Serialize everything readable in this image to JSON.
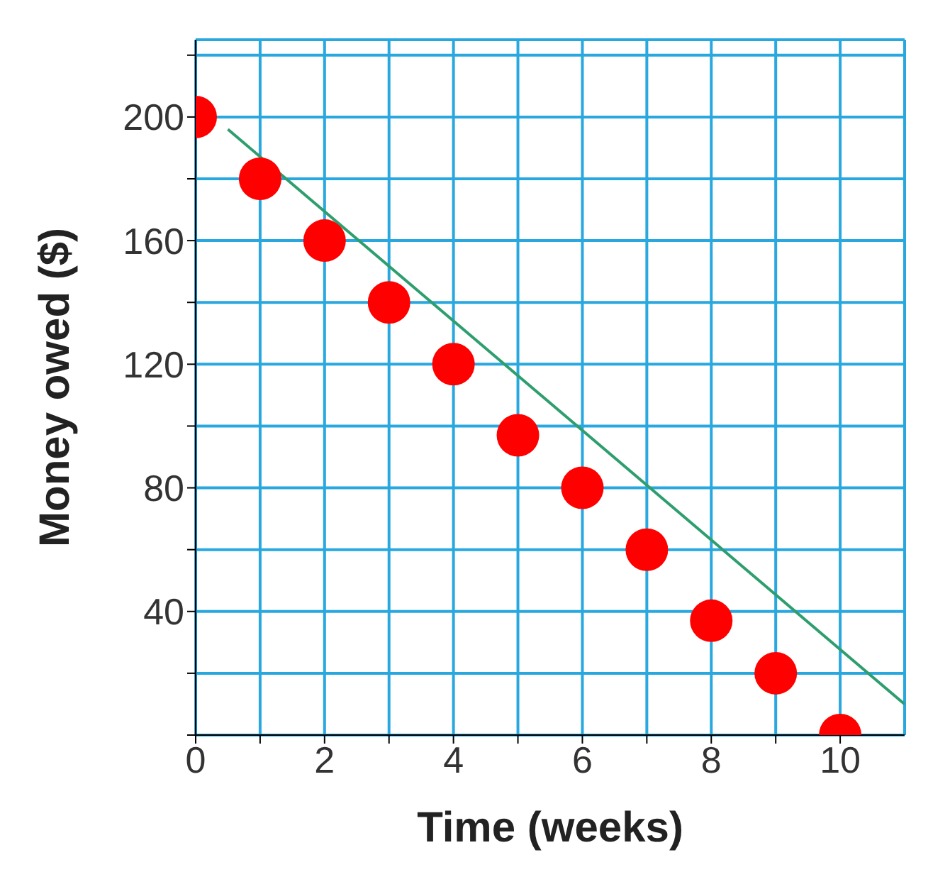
{
  "chart_data": {
    "type": "scatter",
    "xlabel": "Time (weeks)",
    "ylabel": "Money owed ($)",
    "x": [
      0,
      1,
      2,
      3,
      4,
      5,
      6,
      7,
      8,
      9,
      10
    ],
    "series": [
      {
        "color": "#ff0000",
        "values": [
          200,
          180,
          160,
          140,
          120,
          97,
          80,
          60,
          37,
          20,
          0
        ],
        "marker": "circle"
      },
      {
        "type": "line",
        "color": "#2e9e6e",
        "x": [
          0.5,
          11
        ],
        "values": [
          196,
          10
        ],
        "marker": "none"
      }
    ],
    "xlim": [
      0,
      11
    ],
    "xticks": [
      0,
      {
        "value": 1,
        "label": null
      },
      2,
      {
        "value": 3,
        "label": null
      },
      4,
      {
        "value": 5,
        "label": null
      },
      6,
      {
        "value": 7,
        "label": null
      },
      8,
      {
        "value": 9,
        "label": null
      },
      10
    ],
    "ylim": [
      0,
      225
    ],
    "yticks": [
      {
        "value": 0,
        "label": null
      },
      {
        "value": 20,
        "label": null
      },
      40,
      {
        "value": 60,
        "label": null
      },
      80,
      {
        "value": 100,
        "label": null
      },
      120,
      {
        "value": 140,
        "label": null
      },
      160,
      {
        "value": 180,
        "label": null
      },
      200,
      {
        "value": 220,
        "label": null
      }
    ],
    "grid": true
  }
}
